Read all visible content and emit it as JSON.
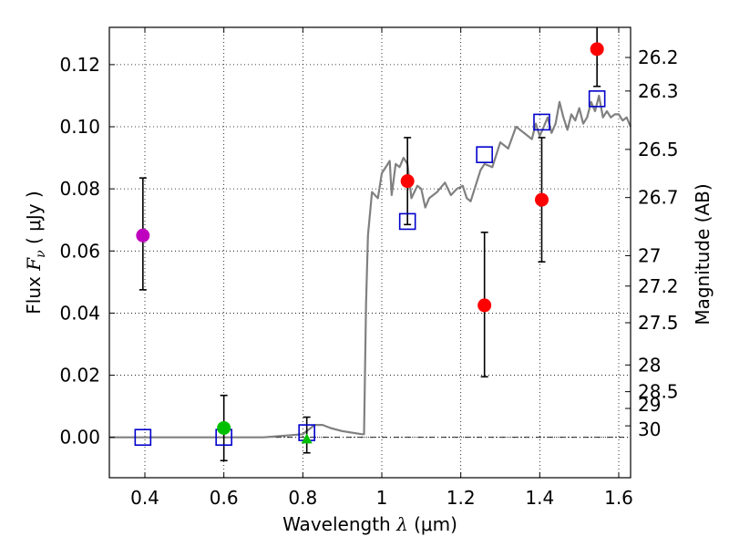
{
  "chart_data": {
    "type": "scatter",
    "title": "",
    "xlabel": {
      "prefix": "Wavelength",
      "symbol": "λ",
      "unit": "(μm)"
    },
    "ylabel": {
      "prefix": "Flux",
      "symbol": "F",
      "subscript": "ν",
      "unit": "( μJy )"
    },
    "y2label": "Magnitude (AB)",
    "xlim": [
      0.31,
      1.63
    ],
    "ylim": [
      -0.013,
      0.132
    ],
    "grid": true,
    "x_ticks": [
      0.4,
      0.6,
      0.8,
      1.0,
      1.2,
      1.4,
      1.6
    ],
    "x_tick_labels": [
      "0.4",
      "0.6",
      "0.8",
      "1",
      "1.2",
      "1.4",
      "1.6"
    ],
    "y_ticks": [
      0.0,
      0.02,
      0.04,
      0.06,
      0.08,
      0.1,
      0.12
    ],
    "y_tick_labels": [
      "0.00",
      "0.02",
      "0.04",
      "0.06",
      "0.08",
      "0.10",
      "0.12"
    ],
    "mag_ticks": [
      {
        "label": "26.2",
        "flux": 0.1223
      },
      {
        "label": "26.3",
        "flux": 0.1115
      },
      {
        "label": "26.5",
        "flux": 0.0927
      },
      {
        "label": "26.7",
        "flux": 0.0772
      },
      {
        "label": "27",
        "flux": 0.0585
      },
      {
        "label": "27.2",
        "flux": 0.0487
      },
      {
        "label": "27.5",
        "flux": 0.0369
      },
      {
        "label": "28",
        "flux": 0.0233
      },
      {
        "label": "28.5",
        "flux": 0.0147
      },
      {
        "label": "29",
        "flux": 0.0093
      },
      {
        "label": "30",
        "flux": 0.0037
      }
    ],
    "series": [
      {
        "name": "model SED",
        "type": "line",
        "color": "#808080",
        "x": [
          0.31,
          0.5,
          0.7,
          0.8,
          0.83,
          0.85,
          0.87,
          0.9,
          0.95,
          0.955,
          0.96,
          0.965,
          0.975,
          0.99,
          1.0,
          1.02,
          1.025,
          1.035,
          1.045,
          1.055,
          1.065,
          1.075,
          1.09,
          1.1,
          1.11,
          1.12,
          1.14,
          1.16,
          1.175,
          1.19,
          1.205,
          1.215,
          1.225,
          1.235,
          1.25,
          1.26,
          1.28,
          1.3,
          1.32,
          1.34,
          1.36,
          1.38,
          1.39,
          1.4,
          1.41,
          1.42,
          1.43,
          1.44,
          1.45,
          1.46,
          1.47,
          1.48,
          1.49,
          1.5,
          1.51,
          1.52,
          1.53,
          1.54,
          1.55,
          1.56,
          1.57,
          1.58,
          1.59,
          1.6,
          1.61,
          1.62,
          1.63
        ],
        "values": [
          0.0,
          0.0,
          0.0,
          0.001,
          0.004,
          0.004,
          0.003,
          0.002,
          0.001,
          0.001,
          0.043,
          0.065,
          0.079,
          0.077,
          0.085,
          0.089,
          0.078,
          0.088,
          0.087,
          0.09,
          0.088,
          0.077,
          0.081,
          0.08,
          0.074,
          0.077,
          0.079,
          0.082,
          0.078,
          0.08,
          0.081,
          0.077,
          0.076,
          0.08,
          0.086,
          0.088,
          0.087,
          0.095,
          0.093,
          0.1,
          0.098,
          0.096,
          0.101,
          0.097,
          0.1,
          0.103,
          0.098,
          0.101,
          0.108,
          0.103,
          0.099,
          0.104,
          0.102,
          0.106,
          0.101,
          0.103,
          0.108,
          0.105,
          0.11,
          0.103,
          0.105,
          0.103,
          0.104,
          0.104,
          0.102,
          0.103,
          0.1
        ]
      },
      {
        "name": "model photometry",
        "type": "open-square",
        "color": "#0000cc",
        "x": [
          0.395,
          0.6,
          0.81,
          1.065,
          1.26,
          1.405,
          1.545
        ],
        "values": [
          0.0,
          0.0,
          0.0015,
          0.0695,
          0.091,
          0.1015,
          0.109
        ]
      },
      {
        "name": "observed (red)",
        "type": "filled-circle",
        "color": "#ff0000",
        "x": [
          1.065,
          1.26,
          1.405,
          1.545
        ],
        "values": [
          0.0825,
          0.0425,
          0.0765,
          0.125
        ],
        "err_lo": [
          0.0685,
          0.0195,
          0.0565,
          0.113
        ],
        "err_hi": [
          0.0965,
          0.066,
          0.0965,
          0.132
        ]
      },
      {
        "name": "observed (magenta)",
        "type": "filled-circle",
        "color": "#bf00bf",
        "x": [
          0.395
        ],
        "values": [
          0.065
        ],
        "err_lo": [
          0.0475
        ],
        "err_hi": [
          0.0835
        ]
      },
      {
        "name": "observed (green)",
        "type": "filled-circle",
        "color": "#00bf00",
        "x": [
          0.6
        ],
        "values": [
          0.003
        ],
        "err_lo": [
          -0.0075
        ],
        "err_hi": [
          0.0135
        ]
      },
      {
        "name": "upper limit (green)",
        "type": "triangle",
        "color": "#00bf00",
        "x": [
          0.81
        ],
        "values": [
          -0.0005
        ],
        "err_lo": [
          -0.005
        ],
        "err_hi": [
          0.0065
        ]
      }
    ]
  }
}
